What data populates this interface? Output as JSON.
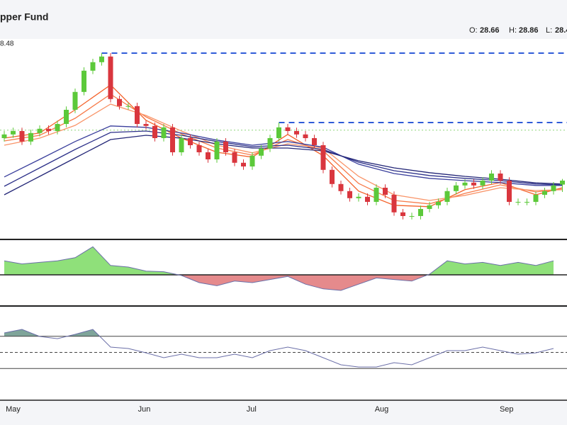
{
  "chart_data": {
    "type": "candlestick",
    "title": "pper Fund",
    "ohlc_labels": [
      "O:",
      "H:",
      "L:"
    ],
    "price_label": "8.48",
    "xlim": [
      -0.48,
      63.52
    ],
    "ylim": [
      26.8,
      33.8
    ],
    "xticks": [
      {
        "value": 1,
        "label": "May"
      },
      {
        "value": 15.8,
        "label": "Jun"
      },
      {
        "value": 27.9,
        "label": "Jul"
      },
      {
        "value": 42.6,
        "label": "Aug"
      },
      {
        "value": 56.7,
        "label": "Sep"
      }
    ],
    "up_color": "#5cc93a",
    "down_color": "#d9363e",
    "open": [
      30.3,
      30.43,
      30.55,
      30.18,
      30.48,
      30.63,
      30.55,
      30.8,
      31.3,
      31.93,
      32.68,
      32.98,
      33.18,
      31.68,
      31.43,
      31.43,
      30.8,
      30.73,
      30.3,
      30.68,
      29.8,
      30.3,
      30.05,
      29.8,
      29.55,
      30.18,
      29.8,
      29.43,
      29.3,
      29.68,
      29.93,
      30.3,
      30.68,
      30.55,
      30.43,
      30.3,
      30.05,
      29.18,
      28.68,
      28.43,
      28.18,
      28.23,
      28.05,
      28.55,
      28.3,
      27.68,
      27.55,
      27.55,
      27.8,
      27.93,
      28.05,
      28.43,
      28.63,
      28.73,
      28.63,
      28.8,
      29.05,
      28.8,
      28.05,
      28.05,
      28.05,
      28.3,
      28.43,
      28.66
    ],
    "high": [
      30.55,
      30.67,
      30.67,
      30.6,
      30.75,
      30.75,
      30.92,
      31.42,
      32.05,
      32.8,
      33.1,
      33.3,
      33.3,
      31.8,
      31.55,
      31.55,
      30.92,
      30.85,
      30.8,
      30.8,
      30.42,
      30.42,
      30.17,
      29.92,
      30.3,
      30.3,
      29.92,
      29.55,
      29.8,
      30.05,
      30.42,
      30.85,
      30.8,
      30.67,
      30.55,
      30.42,
      30.17,
      29.3,
      28.8,
      28.55,
      28.35,
      28.35,
      28.67,
      28.67,
      28.42,
      27.8,
      27.67,
      27.92,
      28.05,
      28.17,
      28.55,
      28.75,
      28.85,
      28.85,
      28.92,
      29.17,
      29.17,
      28.92,
      28.17,
      28.17,
      28.42,
      28.55,
      28.75,
      28.86
    ],
    "low": [
      30.18,
      30.31,
      30.06,
      30.06,
      30.36,
      30.43,
      30.43,
      30.68,
      31.18,
      31.81,
      32.56,
      32.86,
      31.56,
      31.31,
      31.31,
      30.68,
      30.61,
      30.18,
      30.18,
      29.68,
      29.68,
      29.93,
      29.68,
      29.43,
      29.43,
      29.68,
      29.31,
      29.18,
      29.18,
      29.56,
      29.81,
      30.18,
      30.43,
      30.31,
      30.18,
      29.93,
      29.06,
      28.56,
      28.31,
      28.06,
      28.06,
      27.93,
      27.93,
      28.18,
      27.56,
      27.43,
      27.43,
      27.43,
      27.68,
      27.81,
      27.93,
      28.31,
      28.51,
      28.51,
      28.51,
      28.68,
      28.68,
      27.93,
      27.93,
      27.93,
      27.93,
      28.18,
      28.31,
      28.4
    ],
    "close": [
      30.43,
      30.55,
      30.18,
      30.48,
      30.63,
      30.55,
      30.8,
      31.3,
      31.93,
      32.68,
      32.98,
      33.18,
      31.68,
      31.43,
      31.43,
      30.8,
      30.73,
      30.3,
      30.68,
      29.8,
      30.3,
      30.05,
      29.8,
      29.55,
      30.18,
      29.8,
      29.43,
      29.3,
      29.68,
      29.93,
      30.3,
      30.68,
      30.55,
      30.43,
      30.3,
      30.05,
      29.18,
      28.68,
      28.43,
      28.18,
      28.23,
      28.05,
      28.55,
      28.3,
      27.68,
      27.55,
      27.55,
      27.8,
      27.93,
      28.05,
      28.43,
      28.63,
      28.73,
      28.63,
      28.8,
      29.05,
      28.8,
      28.05,
      28.05,
      28.05,
      28.3,
      28.43,
      28.63,
      28.8
    ],
    "levels": [
      {
        "value": 33.3,
        "from": 11,
        "color": "#2f5bd8",
        "style": "dashed"
      },
      {
        "value": 30.85,
        "from": 31,
        "color": "#2f5bd8",
        "style": "dashed"
      },
      {
        "value": 30.58,
        "from": -0.48,
        "color": "#8fd67a",
        "style": "dotted"
      }
    ],
    "ribbons": [
      {
        "color": "#f4622a",
        "x": [
          0,
          4,
          8,
          12,
          16,
          20,
          24,
          28,
          32,
          36,
          40,
          44,
          48,
          52,
          56,
          60,
          63
        ],
        "values": [
          30.3,
          30.48,
          31.3,
          32.18,
          30.93,
          30.3,
          29.8,
          29.63,
          30.43,
          29.68,
          28.43,
          27.93,
          27.88,
          28.48,
          28.73,
          28.3,
          28.55
        ]
      },
      {
        "color": "#f77b4a",
        "x": [
          0,
          4,
          8,
          12,
          16,
          20,
          24,
          28,
          32,
          36,
          40,
          44,
          48,
          52,
          56,
          60,
          63
        ],
        "values": [
          30.2,
          30.4,
          31.0,
          31.85,
          31.05,
          30.45,
          29.95,
          29.7,
          30.25,
          29.85,
          28.7,
          28.1,
          27.98,
          28.35,
          28.65,
          28.4,
          28.5
        ]
      },
      {
        "color": "#f99468",
        "x": [
          0,
          4,
          8,
          12,
          16,
          20,
          24,
          28,
          32,
          36,
          40,
          44,
          48,
          52,
          56,
          60,
          63
        ],
        "values": [
          30.05,
          30.3,
          30.75,
          31.5,
          31.1,
          30.55,
          30.05,
          29.78,
          30.1,
          29.95,
          28.95,
          28.3,
          28.1,
          28.28,
          28.55,
          28.45,
          28.48
        ]
      },
      {
        "color": "#3a3f9c",
        "x": [
          0,
          4,
          8,
          12,
          16,
          20,
          24,
          28,
          32,
          36,
          40,
          44,
          48,
          52,
          56,
          60,
          63
        ],
        "values": [
          28.93,
          29.55,
          30.18,
          30.73,
          30.68,
          30.48,
          30.23,
          30.05,
          30.18,
          29.98,
          29.38,
          29.05,
          28.88,
          28.8,
          28.73,
          28.63,
          28.63
        ]
      },
      {
        "color": "#2c3089",
        "x": [
          0,
          4,
          8,
          12,
          16,
          20,
          24,
          28,
          32,
          36,
          40,
          44,
          48,
          52,
          56,
          60,
          63
        ],
        "values": [
          28.6,
          29.25,
          29.9,
          30.5,
          30.55,
          30.4,
          30.18,
          30.0,
          30.05,
          29.9,
          29.45,
          29.15,
          28.98,
          28.88,
          28.8,
          28.68,
          28.65
        ]
      },
      {
        "color": "#232677",
        "x": [
          0,
          4,
          8,
          12,
          16,
          20,
          24,
          28,
          32,
          36,
          40,
          44,
          48,
          52,
          56,
          60,
          63
        ],
        "values": [
          28.3,
          28.95,
          29.6,
          30.25,
          30.4,
          30.3,
          30.1,
          29.95,
          29.95,
          29.85,
          29.5,
          29.25,
          29.08,
          28.95,
          28.85,
          28.72,
          28.68
        ]
      }
    ],
    "oscillator": {
      "ylim": [
        -1,
        1
      ],
      "up_color": "#8fe07a",
      "down_color": "#e58a8c",
      "line_color": "#6b6fa8",
      "x": [
        0,
        2,
        4,
        6,
        8,
        10,
        12,
        14,
        16,
        18,
        20,
        22,
        24,
        26,
        28,
        30,
        32,
        34,
        36,
        38,
        40,
        42,
        44,
        46,
        48,
        50,
        52,
        54,
        56,
        58,
        60,
        62
      ],
      "values": [
        0.45,
        0.35,
        0.4,
        0.45,
        0.55,
        0.9,
        0.3,
        0.25,
        0.12,
        0.1,
        -0.02,
        -0.25,
        -0.35,
        -0.2,
        -0.25,
        -0.15,
        -0.05,
        -0.3,
        -0.45,
        -0.5,
        -0.3,
        -0.1,
        -0.15,
        -0.2,
        0.02,
        0.45,
        0.35,
        0.4,
        0.3,
        0.4,
        0.3,
        0.45
      ]
    },
    "rsi": {
      "ylim": [
        -5,
        105
      ],
      "levels": [
        30,
        50,
        70
      ],
      "line_color": "#6b6fa8",
      "fill_color": "#7fa59a",
      "x": [
        0,
        2,
        4,
        6,
        8,
        10,
        12,
        14,
        16,
        18,
        20,
        22,
        24,
        26,
        28,
        30,
        32,
        34,
        36,
        38,
        40,
        42,
        44,
        46,
        48,
        50,
        52,
        54,
        56,
        58,
        60,
        62
      ],
      "values": [
        74.2,
        78.6,
        69.8,
        67.1,
        72.4,
        78.6,
        56.6,
        54.8,
        49.5,
        43.4,
        47.8,
        43.4,
        43.4,
        47.8,
        43.4,
        52.2,
        56.6,
        52.2,
        43.4,
        34.6,
        31.9,
        31.9,
        37.2,
        34.6,
        43.4,
        52.2,
        52.2,
        56.6,
        52.2,
        47.8,
        49.5,
        54.8
      ]
    }
  }
}
